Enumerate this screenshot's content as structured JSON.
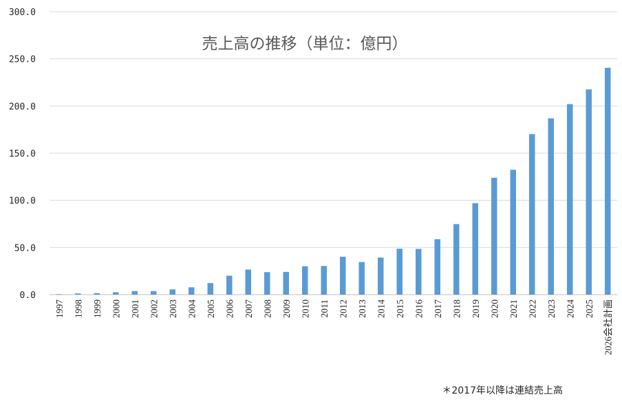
{
  "chart_data": {
    "type": "bar",
    "title": "売上高の推移（単位：億円）",
    "xlabel": "",
    "ylabel": "",
    "ylim": [
      0,
      300
    ],
    "y_ticks": [
      "0.0",
      "50.0",
      "100.0",
      "150.0",
      "200.0",
      "250.0",
      "300.0"
    ],
    "grid": true,
    "legend": "none",
    "bar_color": "#5b9bd5",
    "categories": [
      "1997",
      "1998",
      "1999",
      "2000",
      "2001",
      "2002",
      "2003",
      "2004",
      "2005",
      "2006",
      "2007",
      "2008",
      "2009",
      "2010",
      "2011",
      "2012",
      "2013",
      "2014",
      "2015",
      "2016",
      "2017",
      "2018",
      "2019",
      "2020",
      "2021",
      "2022",
      "2023",
      "2024",
      "2025",
      "2026会社計画"
    ],
    "values": [
      0.5,
      1.3,
      1.6,
      2.6,
      3.8,
      3.8,
      5.6,
      7.8,
      12.3,
      20.1,
      26.6,
      23.9,
      24.1,
      30.1,
      30.4,
      40.2,
      34.6,
      39.3,
      48.7,
      48.5,
      58.8,
      74.8,
      97.0,
      123.9,
      132.4,
      170.2,
      186.9,
      202.0,
      217.6,
      240.5
    ]
  },
  "footnote": "＊2017年以降は連結売上高"
}
